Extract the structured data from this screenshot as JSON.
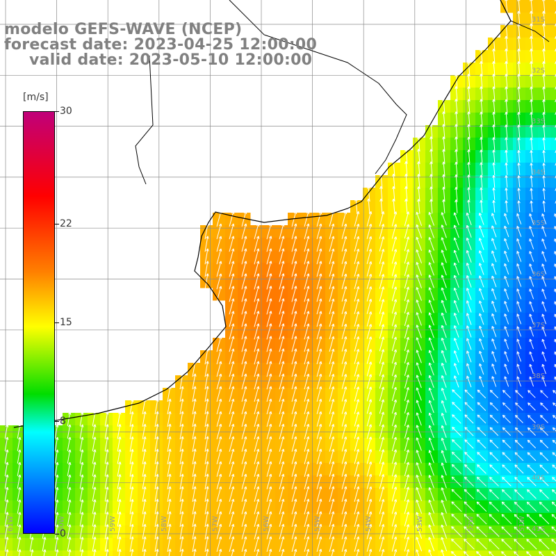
{
  "titles": {
    "line1": "modelo GEFS-WAVE (NCEP)",
    "line2": "forecast date: 2023-04-25 12:00:00",
    "line3": "valid date: 2023-05-10 12:00:00"
  },
  "colorbar": {
    "unit": "[m/s]",
    "min": 0,
    "max": 30,
    "ticks": [
      {
        "value": 30,
        "label": "30"
      },
      {
        "value": 22,
        "label": "22"
      },
      {
        "value": 15,
        "label": "15"
      },
      {
        "value": 8,
        "label": "8"
      },
      {
        "value": 0,
        "label": "0"
      }
    ],
    "colors": [
      "#0000ff",
      "#0080ff",
      "#00ffff",
      "#00dd00",
      "#ffff00",
      "#ff8000",
      "#ff0000",
      "#c0007a"
    ]
  },
  "map": {
    "lon_range": [
      -62,
      -51
    ],
    "lat_range": [
      -41.3,
      -30.4
    ],
    "lon_labels": [
      "61W",
      "60W",
      "59W",
      "58W",
      "57W",
      "56W",
      "55W",
      "54W",
      "53W",
      "52W",
      "51W"
    ],
    "lat_labels": [
      "31S",
      "32S",
      "33S",
      "34S",
      "35S",
      "36S",
      "37S",
      "38S",
      "39S",
      "40S",
      "41S"
    ]
  }
}
